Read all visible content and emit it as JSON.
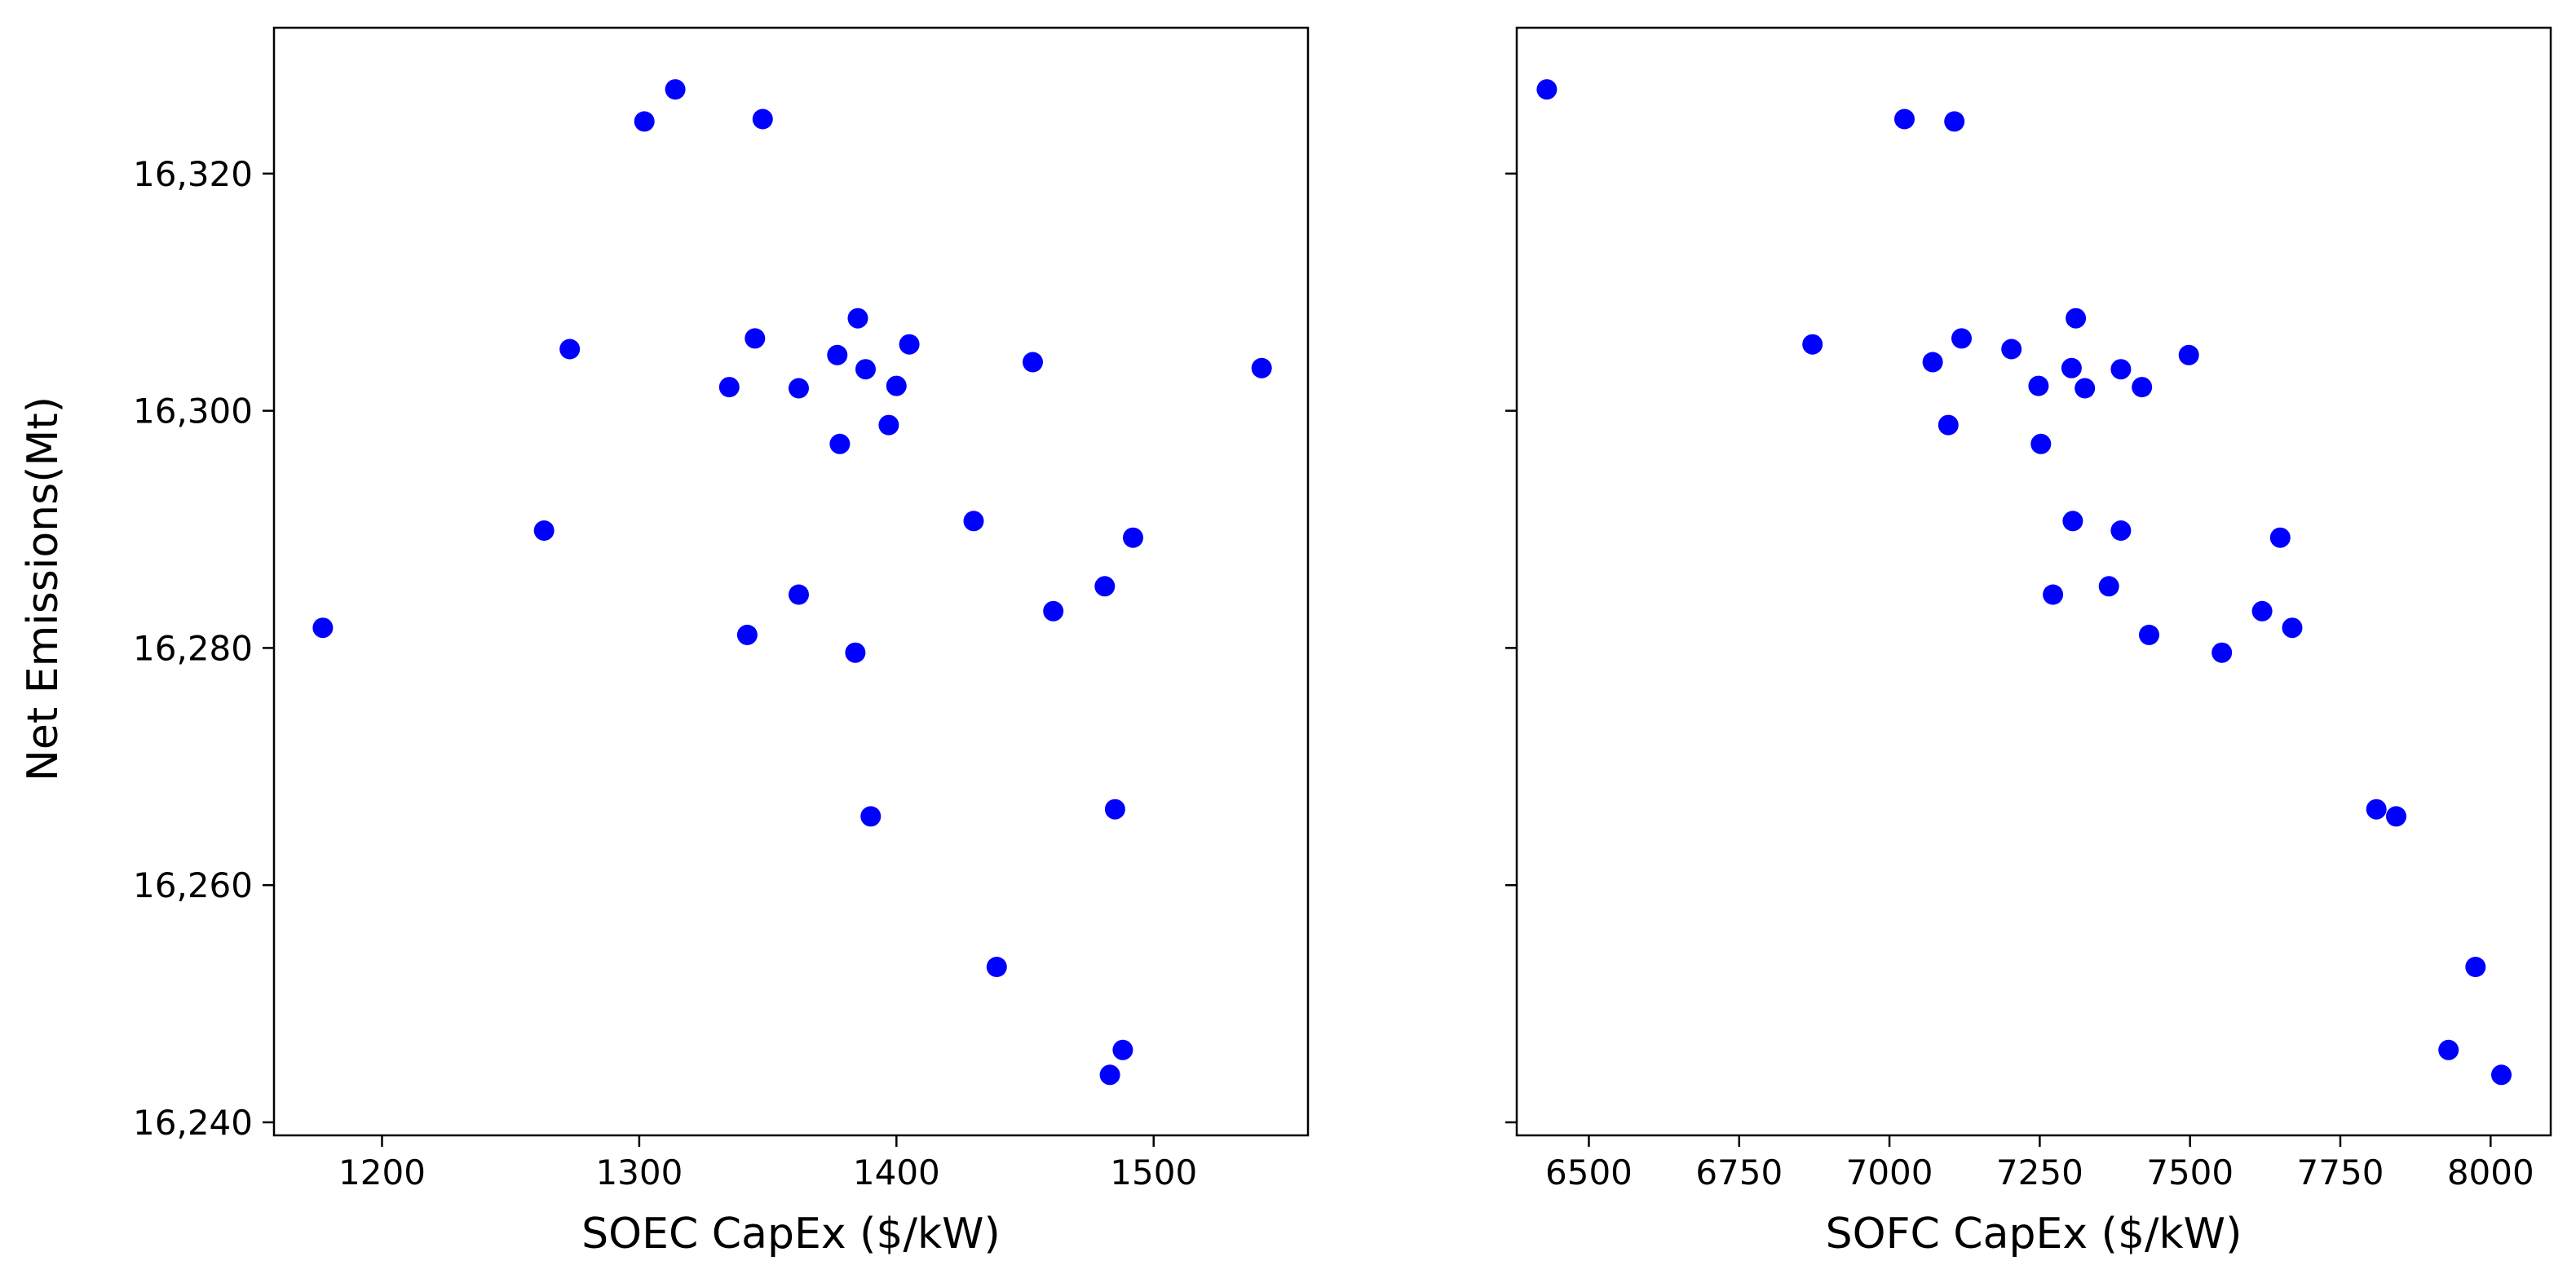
{
  "figure": {
    "ylabel": "Net Emissions(Mt)",
    "point_color": "#0000ff"
  },
  "chart_data": [
    {
      "type": "scatter",
      "title": "",
      "xlabel": "SOEC CapEx ($/kW)",
      "ylabel": "Net Emissions(Mt)",
      "xlim": [
        1158,
        1560
      ],
      "ylim": [
        16238.9,
        16332.3
      ],
      "xticks": [
        1200,
        1300,
        1400,
        1500
      ],
      "yticks": [
        16240,
        16260,
        16280,
        16300,
        16320
      ],
      "ytick_labels": [
        "16,240",
        "16,260",
        "16,280",
        "16,300",
        "16,320"
      ],
      "grid": false,
      "points": [
        {
          "x": 1302,
          "y": 16324.4
        },
        {
          "x": 1314,
          "y": 16327.1
        },
        {
          "x": 1348,
          "y": 16324.6
        },
        {
          "x": 1273,
          "y": 16305.2
        },
        {
          "x": 1345,
          "y": 16306.1
        },
        {
          "x": 1385,
          "y": 16307.8
        },
        {
          "x": 1377,
          "y": 16304.7
        },
        {
          "x": 1405,
          "y": 16305.6
        },
        {
          "x": 1453,
          "y": 16304.1
        },
        {
          "x": 1542,
          "y": 16303.6
        },
        {
          "x": 1335,
          "y": 16302.0
        },
        {
          "x": 1362,
          "y": 16301.9
        },
        {
          "x": 1388,
          "y": 16303.5
        },
        {
          "x": 1400,
          "y": 16302.1
        },
        {
          "x": 1378,
          "y": 16297.2
        },
        {
          "x": 1397,
          "y": 16298.8
        },
        {
          "x": 1263,
          "y": 16289.9
        },
        {
          "x": 1430,
          "y": 16290.7
        },
        {
          "x": 1492,
          "y": 16289.3
        },
        {
          "x": 1362,
          "y": 16284.5
        },
        {
          "x": 1481,
          "y": 16285.2
        },
        {
          "x": 1461,
          "y": 16283.1
        },
        {
          "x": 1177,
          "y": 16281.7
        },
        {
          "x": 1342,
          "y": 16281.1
        },
        {
          "x": 1384,
          "y": 16279.6
        },
        {
          "x": 1390,
          "y": 16265.8
        },
        {
          "x": 1485,
          "y": 16266.4
        },
        {
          "x": 1439,
          "y": 16253.1
        },
        {
          "x": 1488,
          "y": 16246.1
        },
        {
          "x": 1483,
          "y": 16244.0
        }
      ]
    },
    {
      "type": "scatter",
      "title": "",
      "xlabel": "SOFC CapEx ($/kW)",
      "ylabel": "",
      "xlim": [
        6380,
        8100
      ],
      "ylim": [
        16238.9,
        16332.3
      ],
      "xticks": [
        6500,
        6750,
        7000,
        7250,
        7500,
        7750,
        8000
      ],
      "yticks": [
        16240,
        16260,
        16280,
        16300,
        16320
      ],
      "ytick_labels": [],
      "grid": false,
      "points": [
        {
          "x": 6430,
          "y": 16327.1
        },
        {
          "x": 7025,
          "y": 16324.6
        },
        {
          "x": 7108,
          "y": 16324.4
        },
        {
          "x": 6872,
          "y": 16305.6
        },
        {
          "x": 7072,
          "y": 16304.1
        },
        {
          "x": 7120,
          "y": 16306.1
        },
        {
          "x": 7203,
          "y": 16305.2
        },
        {
          "x": 7310,
          "y": 16307.8
        },
        {
          "x": 7303,
          "y": 16303.6
        },
        {
          "x": 7385,
          "y": 16303.5
        },
        {
          "x": 7498,
          "y": 16304.7
        },
        {
          "x": 7248,
          "y": 16302.1
        },
        {
          "x": 7325,
          "y": 16301.9
        },
        {
          "x": 7420,
          "y": 16302.0
        },
        {
          "x": 7098,
          "y": 16298.8
        },
        {
          "x": 7252,
          "y": 16297.2
        },
        {
          "x": 7305,
          "y": 16290.7
        },
        {
          "x": 7385,
          "y": 16289.9
        },
        {
          "x": 7650,
          "y": 16289.3
        },
        {
          "x": 7272,
          "y": 16284.5
        },
        {
          "x": 7365,
          "y": 16285.2
        },
        {
          "x": 7620,
          "y": 16283.1
        },
        {
          "x": 7670,
          "y": 16281.7
        },
        {
          "x": 7432,
          "y": 16281.1
        },
        {
          "x": 7553,
          "y": 16279.6
        },
        {
          "x": 7810,
          "y": 16266.4
        },
        {
          "x": 7843,
          "y": 16265.8
        },
        {
          "x": 7975,
          "y": 16253.1
        },
        {
          "x": 7930,
          "y": 16246.1
        },
        {
          "x": 8018,
          "y": 16244.0
        }
      ]
    }
  ]
}
